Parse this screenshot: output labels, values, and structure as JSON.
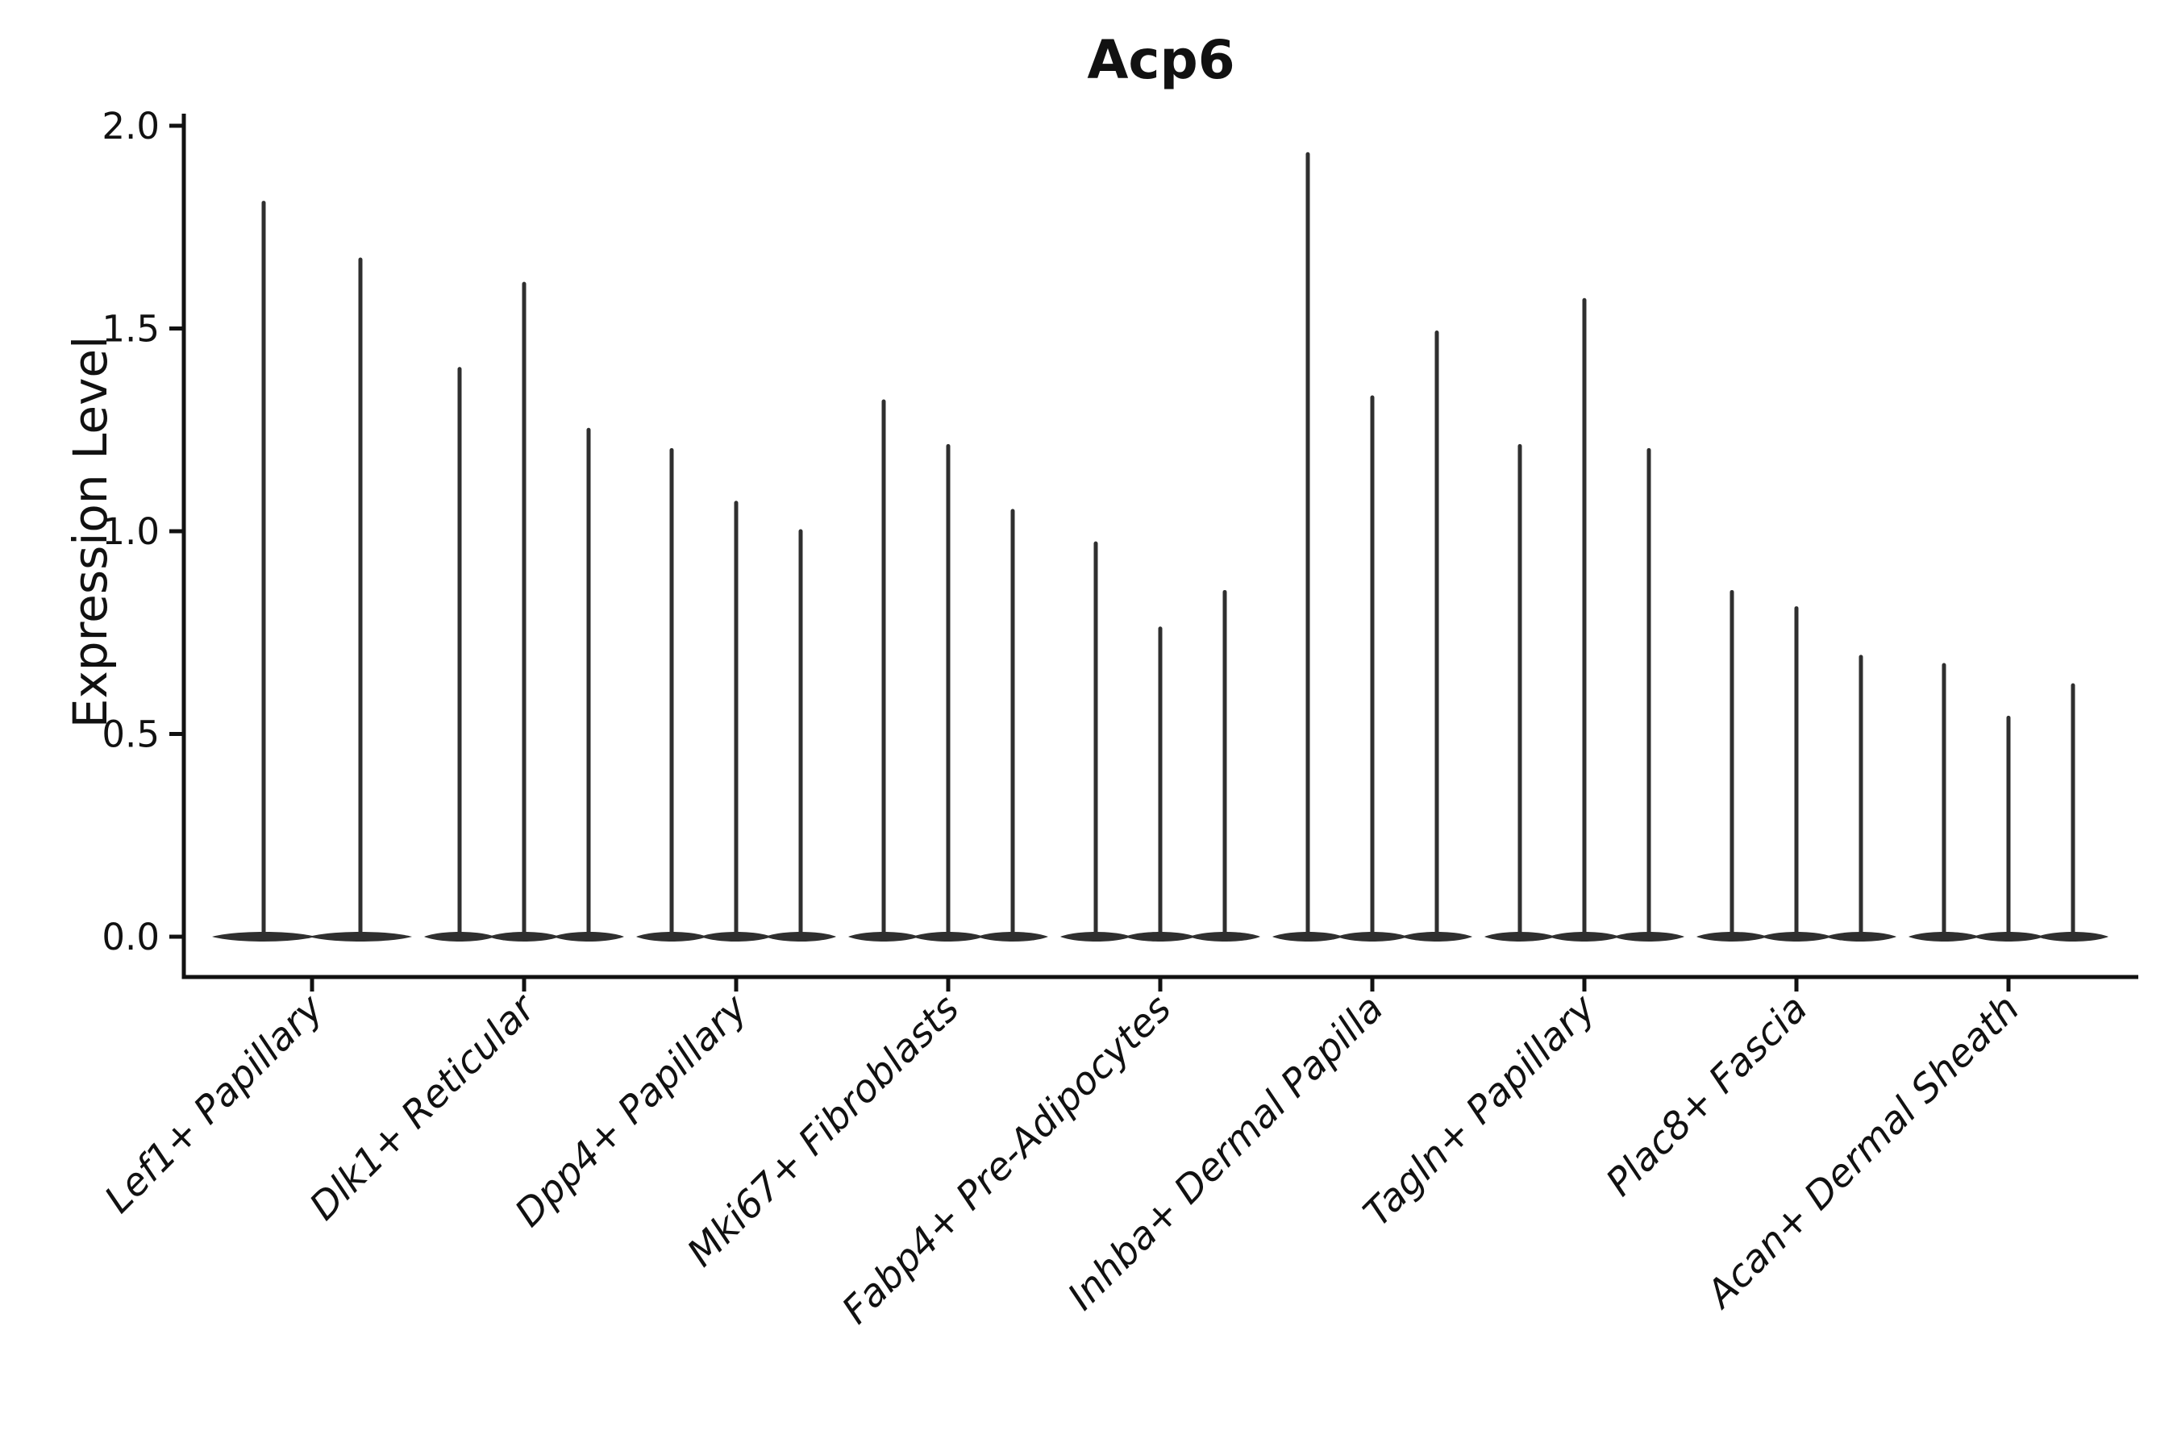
{
  "figure": {
    "title": "Acp6",
    "y_axis_label": "Expression Level"
  },
  "chart_data": {
    "type": "violin",
    "title": "Acp6",
    "xlabel": "",
    "ylabel": "Expression Level",
    "ylim": [
      0.0,
      2.0
    ],
    "yticks": [
      0.0,
      0.5,
      1.0,
      1.5,
      2.0
    ],
    "ytick_labels": [
      "0.0",
      "0.5",
      "1.0",
      "1.5",
      "2.0"
    ],
    "grid": false,
    "legend_position": "none",
    "x_tick_rotation_degrees": 45,
    "categories": [
      "Lef1+ Papillary",
      "Dlk1+ Reticular",
      "Dpp4+ Papillary",
      "Mki67+ Fibroblasts",
      "Fabp4+ Pre-Adipocytes",
      "Inhba+ Dermal Papilla",
      "Tagln+ Papillary",
      "Plac8+ Fascia",
      "Acan+ Dermal Sheath"
    ],
    "violins": [
      {
        "category": "Lef1+ Papillary",
        "baseline_value": 0.0,
        "peak_values": [
          1.81,
          1.67
        ]
      },
      {
        "category": "Dlk1+ Reticular",
        "baseline_value": 0.0,
        "peak_values": [
          1.4,
          1.61,
          1.25
        ]
      },
      {
        "category": "Dpp4+ Papillary",
        "baseline_value": 0.0,
        "peak_values": [
          1.2,
          1.07,
          1.0
        ]
      },
      {
        "category": "Mki67+ Fibroblasts",
        "baseline_value": 0.0,
        "peak_values": [
          1.32,
          1.21,
          1.05
        ]
      },
      {
        "category": "Fabp4+ Pre-Adipocytes",
        "baseline_value": 0.0,
        "peak_values": [
          0.97,
          0.76,
          0.85
        ]
      },
      {
        "category": "Inhba+ Dermal Papilla",
        "baseline_value": 0.0,
        "peak_values": [
          1.93,
          1.33,
          1.49
        ]
      },
      {
        "category": "Tagln+ Papillary",
        "baseline_value": 0.0,
        "peak_values": [
          1.21,
          1.57,
          1.2
        ]
      },
      {
        "category": "Plac8+ Fascia",
        "baseline_value": 0.0,
        "peak_values": [
          0.85,
          0.81,
          0.69
        ]
      },
      {
        "category": "Acan+ Dermal Sheath",
        "baseline_value": 0.0,
        "peak_values": [
          0.67,
          0.54,
          0.62
        ]
      }
    ]
  },
  "style": {
    "violin_color": "#2f2f2f",
    "axis_color": "#111111",
    "text_color": "#111111",
    "background_color": "#ffffff"
  }
}
